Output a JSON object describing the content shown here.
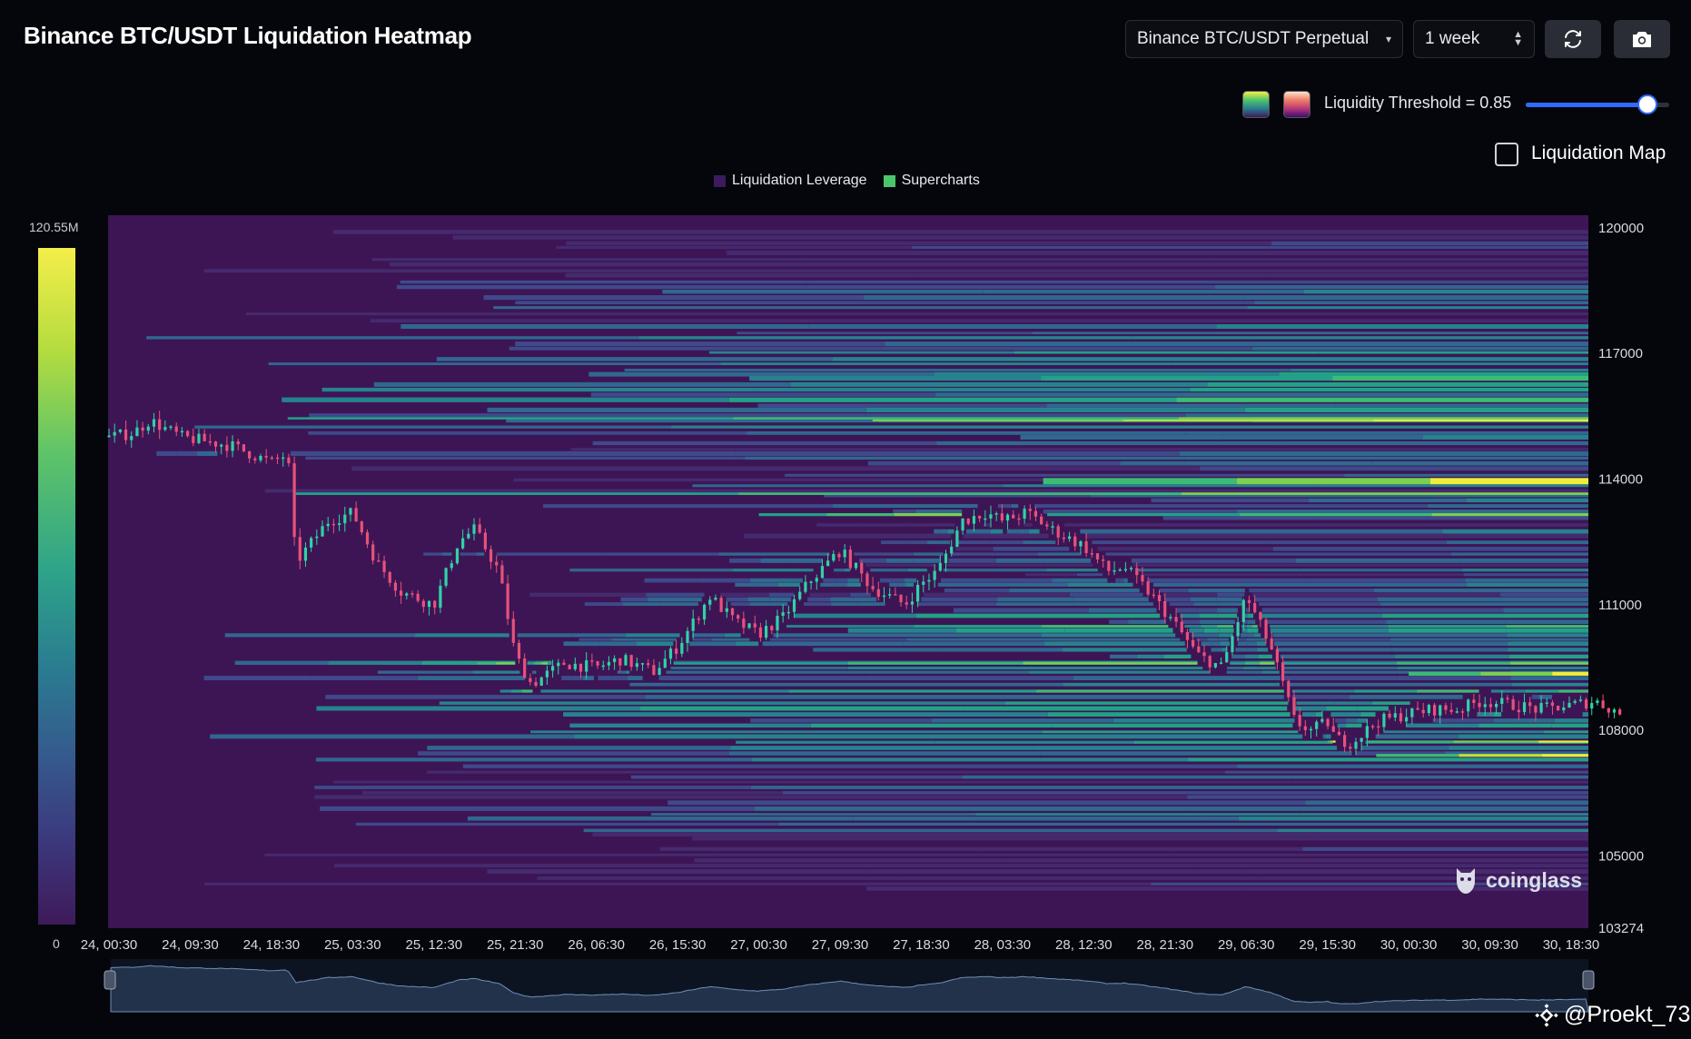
{
  "header": {
    "title": "Binance BTC/USDT Liquidation Heatmap",
    "pair_select": "Binance BTC/USDT Perpetual",
    "period_select": "1 week",
    "refresh_icon": "refresh-icon",
    "camera_icon": "camera-icon"
  },
  "controls": {
    "palette_1_icon": "viridis-swatch",
    "palette_2_icon": "magma-swatch",
    "threshold_label": "Liquidity Threshold = 0.85",
    "threshold_value": 0.85,
    "liquidation_map_label": "Liquidation Map",
    "liquidation_map_checked": false,
    "accent_color": "#2f6bff"
  },
  "legend": {
    "items": [
      {
        "label": "Liquidation Leverage",
        "color": "#3b1a5e"
      },
      {
        "label": "Supercharts",
        "color": "#4cc46c"
      }
    ]
  },
  "colorscale": {
    "max_label": "120.55M",
    "min_label": "0"
  },
  "watermark": "coinglass",
  "credit": "@Proekt_73",
  "chart_data": {
    "type": "heatmap",
    "title": "Binance BTC/USDT Liquidation Heatmap",
    "x_tick_labels": [
      "24, 00:30",
      "24, 09:30",
      "24, 18:30",
      "25, 03:30",
      "25, 12:30",
      "25, 21:30",
      "26, 06:30",
      "26, 15:30",
      "27, 00:30",
      "27, 09:30",
      "27, 18:30",
      "28, 03:30",
      "28, 12:30",
      "28, 21:30",
      "29, 06:30",
      "29, 15:30",
      "30, 00:30",
      "30, 09:30",
      "30, 18:30"
    ],
    "y_tick_labels": [
      "120000",
      "117000",
      "114000",
      "111000",
      "108000",
      "105000",
      "103274"
    ],
    "ylim": [
      103274,
      120300
    ],
    "colorbar_range": [
      0,
      120550000
    ],
    "price_path": {
      "times": [
        0,
        0.3,
        0.5,
        0.9,
        1.5,
        2.0,
        2.2,
        2.3,
        2.7,
        3.0,
        3.3,
        3.6,
        4.0,
        4.3,
        4.5,
        4.8,
        5.0,
        5.2,
        5.6,
        6.0,
        6.3,
        6.7,
        7.0,
        7.4,
        7.7,
        8.0,
        8.3,
        8.6,
        9.0,
        9.4,
        9.8,
        10.0,
        10.2,
        10.5,
        10.8,
        11.0,
        11.3,
        11.6,
        12.0,
        12.3,
        12.5,
        12.8,
        13.1,
        13.4,
        13.7,
        14.0,
        14.3,
        14.6,
        14.8,
        15.0,
        15.1,
        15.3,
        15.6,
        16.0,
        16.3,
        16.6,
        16.9,
        17.3,
        17.6,
        18.0,
        18.3,
        18.6
      ],
      "prices": [
        115000,
        115100,
        115400,
        115000,
        114800,
        114400,
        114600,
        112000,
        113000,
        113200,
        112000,
        111300,
        111000,
        112500,
        112800,
        111800,
        109800,
        109100,
        109600,
        109500,
        109700,
        109400,
        110000,
        111200,
        110600,
        110300,
        110700,
        111500,
        112300,
        111400,
        111000,
        111500,
        111800,
        113000,
        113200,
        113000,
        113200,
        112800,
        112400,
        111800,
        111900,
        111300,
        110600,
        109800,
        109500,
        111200,
        110000,
        108200,
        108000,
        108200,
        107800,
        107700,
        108200,
        108400,
        108500,
        108500,
        108700,
        108600,
        108500,
        108600,
        108700,
        108400
      ]
    }
  }
}
